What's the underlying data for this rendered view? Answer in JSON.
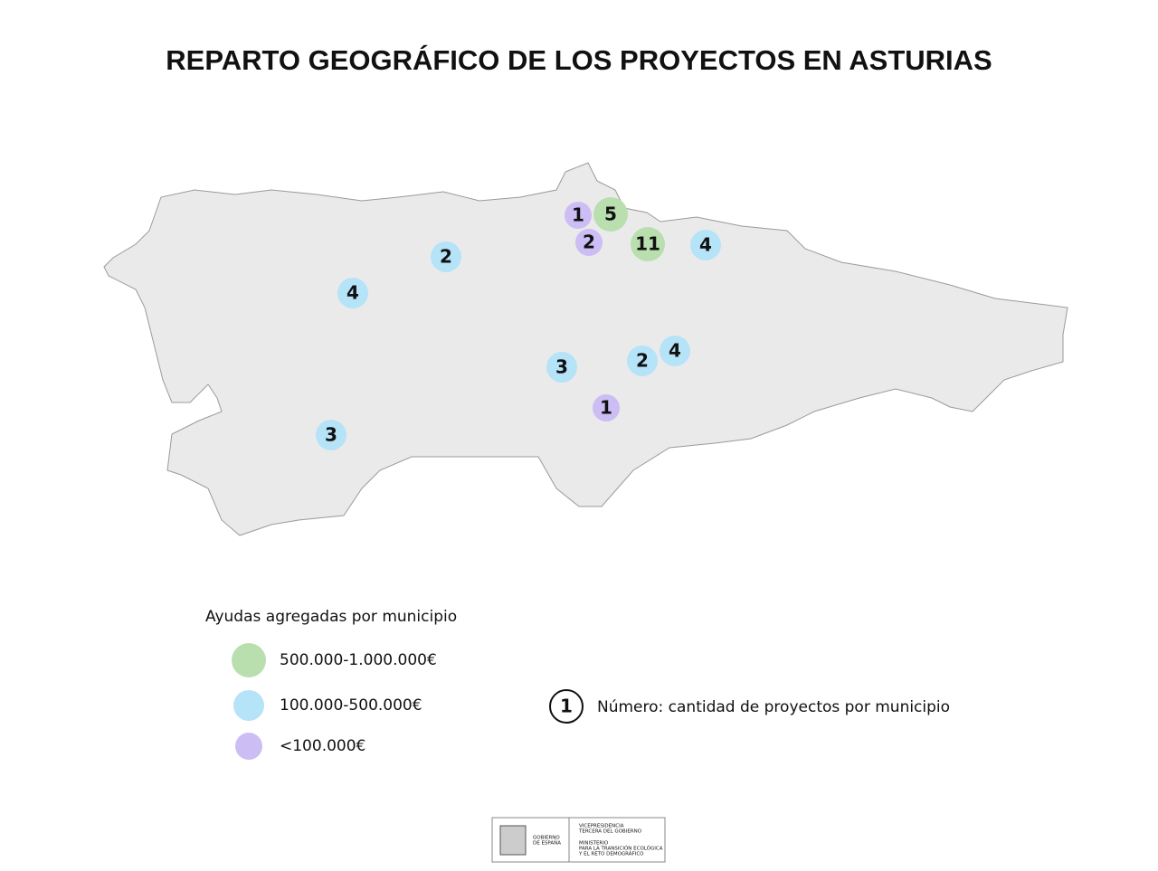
{
  "title": "REPARTO GEOGRÁFICO DE LOS PROYECTOS EN ASTURIAS",
  "markers": [
    {
      "count": 1,
      "color": "#cdbdf5"
    },
    {
      "count": 5,
      "color": "#b9dfae"
    },
    {
      "count": 2,
      "color": "#cdbdf5"
    },
    {
      "count": 11,
      "color": "#b9dfae"
    },
    {
      "count": 4,
      "color": "#b5e3f8"
    },
    {
      "count": 2,
      "color": "#b5e3f8"
    },
    {
      "count": 4,
      "color": "#b5e3f8"
    },
    {
      "count": 3,
      "color": "#b5e3f8"
    },
    {
      "count": 2,
      "color": "#b5e3f8"
    },
    {
      "count": 4,
      "color": "#b5e3f8"
    },
    {
      "count": 1,
      "color": "#cdbdf5"
    },
    {
      "count": 3,
      "color": "#b5e3f8"
    }
  ],
  "legend": {
    "title": "Ayudas agregadas por municipio",
    "items": [
      {
        "label": "500.000-1.000.000€",
        "color": "#b9dfae"
      },
      {
        "label": "100.000-500.000€",
        "color": "#b5e3f8"
      },
      {
        "label": "<100.000€",
        "color": "#cdbdf5"
      }
    ],
    "key_sample": "1",
    "key_text": "Número: cantidad de proyectos por municipio"
  },
  "footer": {
    "left": [
      "GOBIERNO",
      "DE ESPAÑA"
    ],
    "right_top": [
      "VICEPRESIDENCIA",
      "TERCERA DEL GOBIERNO"
    ],
    "right_bottom": [
      "MINISTERIO",
      "PARA LA TRANSICIÓN ECOLÓGICA",
      "Y EL RETO DEMOGRÁFICO"
    ]
  }
}
